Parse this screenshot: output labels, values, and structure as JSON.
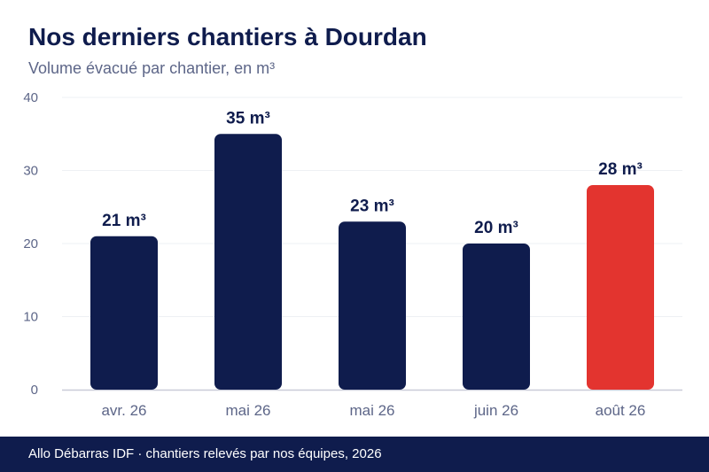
{
  "chart_data": {
    "type": "bar",
    "title": "Nos derniers chantiers à Dourdan",
    "subtitle": "Volume évacué par chantier, en m³",
    "categories": [
      "avr. 26",
      "mai 26",
      "mai 26",
      "juin 26",
      "août 26"
    ],
    "values": [
      21,
      35,
      23,
      20,
      28
    ],
    "data_labels": [
      "21 m³",
      "35 m³",
      "23 m³",
      "20 m³",
      "28 m³"
    ],
    "highlight_index": 4,
    "ylim": [
      0,
      40
    ],
    "yticks": [
      "0",
      "10",
      "20",
      "30",
      "40"
    ],
    "xlabel": "",
    "ylabel": "",
    "grid": true,
    "colors": {
      "bar": "#0f1c4d",
      "highlight": "#e3342f",
      "grid": "#eef0f4",
      "axis": "#c9ccd8",
      "tick_text": "#5d6688",
      "label_text": "#0f1c4d"
    }
  },
  "footer": {
    "text": "Allo Débarras IDF · chantiers relevés par nos équipes, 2026"
  }
}
